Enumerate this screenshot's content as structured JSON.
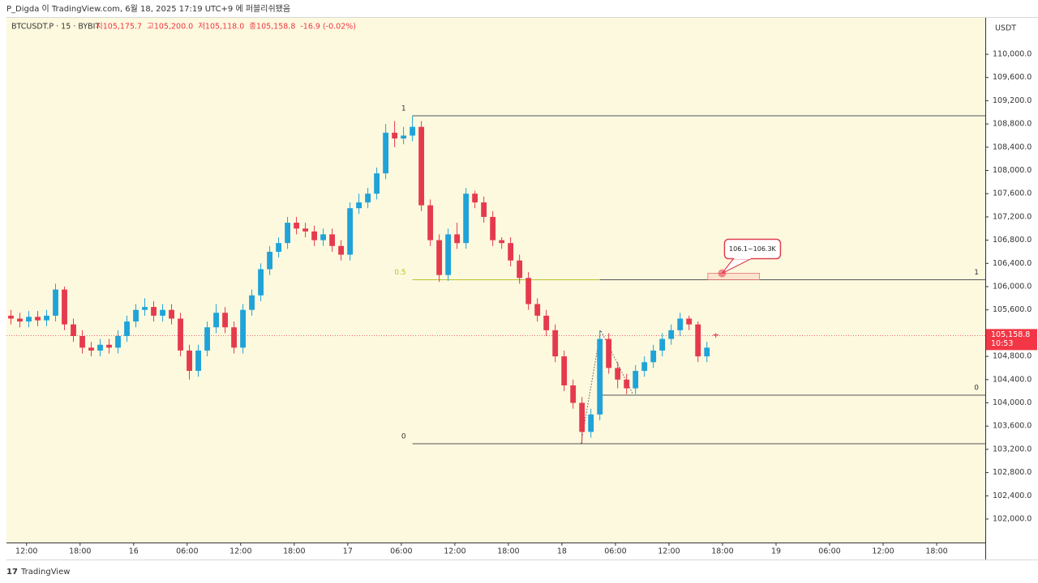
{
  "header": {
    "publisher": "P_Digda 이 TradingView.com, 6월 18, 2025 17:19 UTC+9 에 퍼블리쉬됐음"
  },
  "footer": {
    "brand": "TradingView"
  },
  "chart_data": {
    "type": "candlestick",
    "symbol": "BTCUSDT.P · 15 · BYBIT",
    "ohlc_legend": [
      "시105,175.7",
      "고105,200.0",
      "저105,118.0",
      "종105,158.8",
      "-16.9 (-0.02%)"
    ],
    "currency": "USDT",
    "up_color": "#1fa3d8",
    "down_color": "#e53a4e",
    "open": [
      105500,
      105450,
      105400,
      105480,
      105420,
      105500,
      105950,
      105350,
      105150,
      104950,
      104900,
      105000,
      104950,
      105150,
      105400,
      105600,
      105650,
      105500,
      105600,
      105450,
      104900,
      104550,
      104900,
      105300,
      105550,
      105300,
      104950,
      105600,
      105850,
      106300,
      106600,
      106750,
      107100,
      107000,
      106950,
      106800,
      106900,
      106700,
      106550,
      107350,
      107450,
      107600,
      107950,
      108650,
      108550,
      108600,
      108750,
      107400,
      106800,
      106200,
      106900,
      106750,
      107600,
      107450,
      107200,
      106800,
      106750,
      106450,
      106150,
      105700,
      105500,
      105250,
      104800,
      104300,
      104000,
      103500,
      103800,
      105100,
      104600,
      104400,
      104250,
      104550,
      104700,
      104900,
      105100,
      105250,
      105450,
      105350,
      104800,
      105175.7
    ],
    "high": [
      105600,
      105550,
      105580,
      105580,
      105600,
      106050,
      106000,
      105450,
      105250,
      105050,
      105100,
      105100,
      105250,
      105500,
      105700,
      105800,
      105750,
      105700,
      105700,
      105550,
      105000,
      105000,
      105400,
      105700,
      105650,
      105400,
      105700,
      105950,
      106400,
      106700,
      106850,
      107200,
      107200,
      107100,
      107050,
      107000,
      107000,
      106800,
      107450,
      107600,
      107700,
      108050,
      108800,
      108850,
      108750,
      108940,
      108850,
      107500,
      106900,
      107000,
      107100,
      107700,
      107650,
      107550,
      107300,
      106850,
      106850,
      106550,
      106250,
      105800,
      105600,
      105350,
      104900,
      104400,
      104100,
      103900,
      105250,
      105200,
      104700,
      104500,
      104650,
      104800,
      105000,
      105200,
      105350,
      105550,
      105500,
      105400,
      105050,
      105200
    ],
    "low": [
      105350,
      105300,
      105300,
      105320,
      105320,
      105400,
      105250,
      105050,
      104850,
      104800,
      104800,
      104850,
      104850,
      105050,
      105300,
      105500,
      105400,
      105400,
      105350,
      104800,
      104400,
      104450,
      104800,
      105200,
      105200,
      104850,
      104850,
      105500,
      105750,
      106200,
      106500,
      106650,
      106900,
      106850,
      106700,
      106700,
      106600,
      106450,
      106450,
      107250,
      107350,
      107500,
      107850,
      108400,
      108450,
      108500,
      107300,
      106700,
      106080,
      106100,
      106650,
      106650,
      107350,
      107100,
      106700,
      106650,
      106350,
      106050,
      105600,
      105400,
      105150,
      104700,
      104200,
      103900,
      103300,
      103400,
      103700,
      104500,
      104250,
      104150,
      104150,
      104450,
      104600,
      104800,
      105000,
      105150,
      105250,
      104700,
      104700,
      105118
    ],
    "close": [
      105450,
      105400,
      105480,
      105420,
      105500,
      105950,
      105350,
      105150,
      104950,
      104900,
      105000,
      104950,
      105150,
      105400,
      105600,
      105650,
      105500,
      105600,
      105450,
      104900,
      104550,
      104900,
      105300,
      105550,
      105300,
      104950,
      105600,
      105850,
      106300,
      106600,
      106750,
      107100,
      107000,
      106950,
      106800,
      106900,
      106700,
      106550,
      107350,
      107450,
      107600,
      107950,
      108650,
      108550,
      108600,
      108750,
      107400,
      106800,
      106200,
      106900,
      106750,
      107600,
      107450,
      107200,
      106800,
      106750,
      106450,
      106150,
      105700,
      105500,
      105250,
      104800,
      104300,
      104000,
      103500,
      103800,
      105100,
      104600,
      104400,
      104250,
      104550,
      104700,
      104900,
      105100,
      105250,
      105450,
      105350,
      104800,
      104950,
      105158.8
    ],
    "xlim": [
      0,
      109.7
    ],
    "ylim": [
      101596,
      110627
    ],
    "xticks": [
      {
        "value": 2.25,
        "label": "12:00"
      },
      {
        "value": 8.25,
        "label": "18:00"
      },
      {
        "value": 14.25,
        "label": "16"
      },
      {
        "value": 20.25,
        "label": "06:00"
      },
      {
        "value": 26.25,
        "label": "12:00"
      },
      {
        "value": 32.25,
        "label": "18:00"
      },
      {
        "value": 38.25,
        "label": "17"
      },
      {
        "value": 44.25,
        "label": "06:00"
      },
      {
        "value": 50.25,
        "label": "12:00"
      },
      {
        "value": 56.25,
        "label": "18:00"
      },
      {
        "value": 62.25,
        "label": "18"
      },
      {
        "value": 68.25,
        "label": "06:00"
      },
      {
        "value": 74.25,
        "label": "12:00"
      },
      {
        "value": 80.25,
        "label": "18:00"
      },
      {
        "value": 86.25,
        "label": "19"
      },
      {
        "value": 92.25,
        "label": "06:00"
      },
      {
        "value": 98.25,
        "label": "12:00"
      },
      {
        "value": 104.25,
        "label": "18:00"
      }
    ],
    "yticks": [
      {
        "value": 102000,
        "label": "102,000.0"
      },
      {
        "value": 102400,
        "label": "102,400.0"
      },
      {
        "value": 102800,
        "label": "102,800.0"
      },
      {
        "value": 103200,
        "label": "103,200.0"
      },
      {
        "value": 103600,
        "label": "103,600.0"
      },
      {
        "value": 104000,
        "label": "104,000.0"
      },
      {
        "value": 104400,
        "label": "104,400.0"
      },
      {
        "value": 104800,
        "label": "104,800.0"
      },
      {
        "value": 105200,
        "label": "105,200.0"
      },
      {
        "value": 105600,
        "label": "105,600.0"
      },
      {
        "value": 106000,
        "label": "106,000.0"
      },
      {
        "value": 106400,
        "label": "106,400.0"
      },
      {
        "value": 106800,
        "label": "106,800.0"
      },
      {
        "value": 107200,
        "label": "107,200.0"
      },
      {
        "value": 107600,
        "label": "107,600.0"
      },
      {
        "value": 108000,
        "label": "108,000.0"
      },
      {
        "value": 108400,
        "label": "108,400.0"
      },
      {
        "value": 108800,
        "label": "108,800.0"
      },
      {
        "value": 109200,
        "label": "109,200.0"
      },
      {
        "value": 109600,
        "label": "109,600.0"
      },
      {
        "value": 110000,
        "label": "110,000.0"
      }
    ],
    "last_price": {
      "value": 105158.8,
      "label": "105,158.8",
      "countdown": "10:53",
      "color": "#f23645"
    },
    "fibs": [
      {
        "x_start": 45.5,
        "label_side": "left",
        "levels": [
          {
            "value": 108941,
            "label": "1",
            "color": "#555555"
          },
          {
            "value": 106118,
            "label": "0.5",
            "color": "#b5c42a"
          },
          {
            "value": 103296,
            "label": "0",
            "color": "#555555"
          }
        ]
      },
      {
        "x_start": 66.5,
        "label_side": "right",
        "levels": [
          {
            "value": 106118,
            "label": "1",
            "color": "#555555"
          },
          {
            "value": 104132,
            "label": "0",
            "color": "#555555"
          }
        ]
      }
    ],
    "path": {
      "x": [
        64.4,
        66.6,
        70.2
      ],
      "y": [
        103300,
        105250,
        104150
      ]
    },
    "callout": {
      "text": "106.1~106.3K",
      "x": 80.2,
      "value": 106230,
      "zone": {
        "x": [
          78.6,
          84.4
        ],
        "y": [
          106118,
          106230
        ]
      }
    }
  }
}
